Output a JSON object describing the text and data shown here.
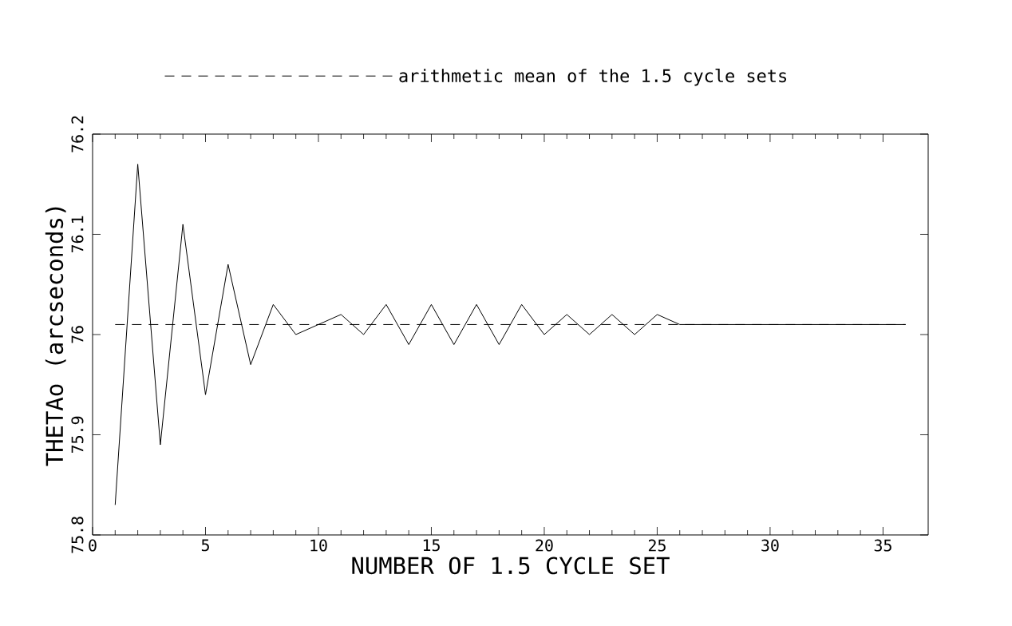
{
  "chart_data": {
    "type": "line",
    "xlabel": "NUMBER OF 1.5 CYCLE SET",
    "ylabel": "THETAo (arcseconds)",
    "x": [
      1,
      2,
      3,
      4,
      5,
      6,
      7,
      8,
      9,
      10,
      11,
      12,
      13,
      14,
      15,
      16,
      17,
      18,
      19,
      20,
      21,
      22,
      23,
      24,
      25,
      26,
      27,
      28,
      29,
      30,
      31,
      32,
      33,
      34,
      35,
      36
    ],
    "series": [
      {
        "color": "#000000",
        "line_style": "solid",
        "values": [
          75.83,
          76.17,
          75.89,
          76.11,
          75.94,
          76.07,
          75.97,
          76.03,
          76.0,
          76.01,
          76.02,
          76.0,
          76.03,
          75.99,
          76.03,
          75.99,
          76.03,
          75.99,
          76.03,
          76.0,
          76.02,
          76.0,
          76.02,
          76.0,
          76.02,
          76.01,
          76.01,
          76.01,
          76.01,
          76.01,
          76.01,
          76.01,
          76.01,
          76.01,
          76.01,
          76.01
        ]
      },
      {
        "name": "arithmetic mean of the 1.5 cycle sets",
        "color": "#000000",
        "line_style": "dashed",
        "x": [
          1,
          36
        ],
        "values": [
          76.01,
          76.01
        ]
      }
    ],
    "xlim": [
      0,
      37
    ],
    "ylim": [
      75.8,
      76.2
    ],
    "xticks": [
      0,
      5,
      10,
      15,
      20,
      25,
      30,
      35
    ],
    "yticks": [
      75.8,
      75.9,
      76,
      76.1,
      76.2
    ],
    "legend": "top",
    "marker": "none"
  }
}
